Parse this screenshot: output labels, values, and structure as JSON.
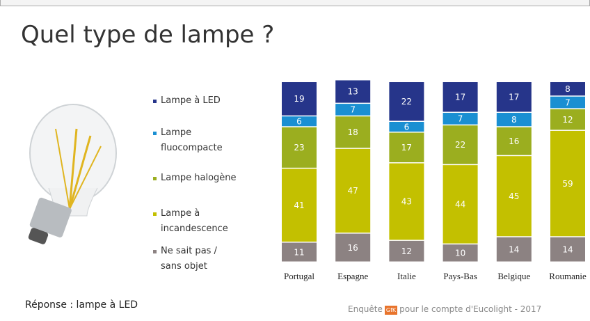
{
  "title": "Quel type de lampe ?",
  "chart_data": {
    "type": "stacked-bar",
    "categories": [
      "Portugal",
      "Espagne",
      "Italie",
      "Pays-Bas",
      "Belgique",
      "Roumanie"
    ],
    "series": [
      {
        "name": "Ne sait pas / sans objet",
        "color": "#8c8282",
        "values": [
          11,
          16,
          12,
          10,
          14,
          14
        ]
      },
      {
        "name": "Lampe à incandescence",
        "color": "#c3c000",
        "values": [
          41,
          47,
          43,
          44,
          45,
          59
        ]
      },
      {
        "name": "Lampe halogène",
        "color": "#9bae1f",
        "values": [
          23,
          18,
          17,
          22,
          16,
          12
        ]
      },
      {
        "name": "Lampe fluocompacte",
        "color": "#1a8fd2",
        "values": [
          6,
          7,
          6,
          7,
          8,
          7
        ]
      },
      {
        "name": "Lampe à LED",
        "color": "#26358a",
        "values": [
          19,
          13,
          22,
          17,
          17,
          8
        ]
      }
    ]
  },
  "footer": {
    "answer": "Réponse : lampe à LED",
    "source_prefix": "Enquête",
    "logo": "GfK",
    "source_suffix": "pour le compte d'Eucolight - 2017"
  }
}
